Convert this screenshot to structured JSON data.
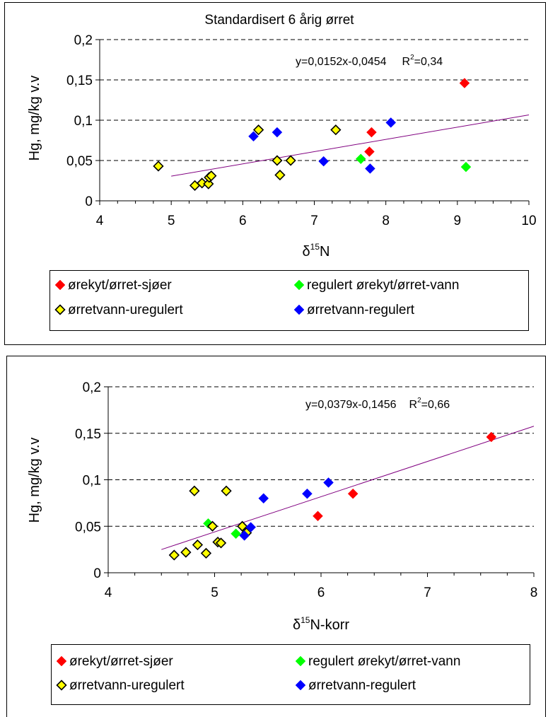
{
  "chart_data": [
    {
      "type": "scatter",
      "title": "Standardisert 6 årig ørret",
      "xlabel": {
        "prefix": "δ",
        "sup": "15",
        "main": "N"
      },
      "ylabel": "Hg, mg/kg v.v",
      "xlim": [
        4,
        10
      ],
      "ylim": [
        0,
        0.2
      ],
      "x_ticks": [
        4,
        5,
        6,
        7,
        8,
        9,
        10
      ],
      "x_tick_labels": [
        "4",
        "5",
        "6",
        "7",
        "8",
        "9",
        "10"
      ],
      "y_ticks": [
        0,
        0.05,
        0.1,
        0.15,
        0.2
      ],
      "y_tick_labels": [
        "0",
        "0,05",
        "0,1",
        "0,15",
        "0,2"
      ],
      "grid": "horizontal dashed",
      "equation": {
        "text": "y=0,0152x-0,0454",
        "r2_prefix": "R",
        "r2_sup": "2",
        "r2_value": "=0,34"
      },
      "trendline": {
        "slope": 0.0152,
        "intercept": -0.0454,
        "x_range": [
          5,
          10
        ],
        "color": "#800080"
      },
      "series": [
        {
          "name": "ørekyt/ørret-sjøer",
          "color": "#ff0000",
          "outline": "#ff0000",
          "points": [
            [
              9.1,
              0.146
            ],
            [
              7.8,
              0.085
            ],
            [
              7.77,
              0.061
            ]
          ]
        },
        {
          "name": "regulert ørekyt/ørret-vann",
          "color": "#00ff00",
          "outline": "#00ff00",
          "points": [
            [
              9.12,
              0.042
            ],
            [
              7.65,
              0.052
            ]
          ]
        },
        {
          "name": "ørretvann-uregulert",
          "color": "#ffff00",
          "outline": "#000000",
          "points": [
            [
              4.82,
              0.043
            ],
            [
              5.33,
              0.019
            ],
            [
              5.43,
              0.022
            ],
            [
              5.52,
              0.021
            ],
            [
              5.53,
              0.029
            ],
            [
              5.56,
              0.031
            ],
            [
              6.22,
              0.088
            ],
            [
              6.48,
              0.05
            ],
            [
              6.52,
              0.032
            ],
            [
              6.67,
              0.05
            ],
            [
              7.3,
              0.088
            ]
          ]
        },
        {
          "name": "ørretvann-regulert",
          "color": "#0000ff",
          "outline": "#0000ff",
          "points": [
            [
              6.15,
              0.08
            ],
            [
              6.48,
              0.085
            ],
            [
              7.13,
              0.049
            ],
            [
              7.78,
              0.04
            ],
            [
              8.07,
              0.097
            ]
          ]
        }
      ]
    },
    {
      "type": "scatter",
      "title": "",
      "xlabel": {
        "prefix": "δ",
        "sup": "15",
        "main": "N-korr"
      },
      "ylabel": "Hg, mg/kg v.v",
      "xlim": [
        4,
        8
      ],
      "ylim": [
        0,
        0.2
      ],
      "x_ticks": [
        4,
        5,
        6,
        7,
        8
      ],
      "x_tick_labels": [
        "4",
        "5",
        "6",
        "7",
        "8"
      ],
      "y_ticks": [
        0,
        0.05,
        0.1,
        0.15,
        0.2
      ],
      "y_tick_labels": [
        "0",
        "0,05",
        "0,1",
        "0,15",
        "0,2"
      ],
      "grid": "horizontal dashed",
      "equation": {
        "text": "y=0,0379x-0,1456",
        "r2_prefix": "R",
        "r2_sup": "2",
        "r2_value": "=0,66"
      },
      "trendline": {
        "slope": 0.0379,
        "intercept": -0.1456,
        "x_range": [
          4.5,
          8
        ],
        "color": "#800080"
      },
      "series": [
        {
          "name": "ørekyt/ørret-sjøer",
          "color": "#ff0000",
          "outline": "#ff0000",
          "points": [
            [
              7.6,
              0.146
            ],
            [
              6.3,
              0.085
            ],
            [
              5.97,
              0.061
            ]
          ]
        },
        {
          "name": "regulert ørekyt/ørret-vann",
          "color": "#00ff00",
          "outline": "#00ff00",
          "points": [
            [
              4.94,
              0.053
            ],
            [
              5.2,
              0.042
            ]
          ]
        },
        {
          "name": "ørretvann-uregulert",
          "color": "#ffff00",
          "outline": "#000000",
          "points": [
            [
              4.62,
              0.019
            ],
            [
              4.73,
              0.022
            ],
            [
              4.84,
              0.03
            ],
            [
              4.92,
              0.021
            ],
            [
              4.98,
              0.05
            ],
            [
              5.03,
              0.033
            ],
            [
              5.06,
              0.032
            ],
            [
              4.81,
              0.088
            ],
            [
              5.11,
              0.088
            ],
            [
              5.26,
              0.05
            ],
            [
              5.3,
              0.043
            ]
          ]
        },
        {
          "name": "ørretvann-regulert",
          "color": "#0000ff",
          "outline": "#0000ff",
          "points": [
            [
              5.46,
              0.08
            ],
            [
              5.87,
              0.085
            ],
            [
              6.07,
              0.097
            ],
            [
              5.34,
              0.049
            ],
            [
              5.28,
              0.04
            ]
          ]
        }
      ]
    }
  ]
}
